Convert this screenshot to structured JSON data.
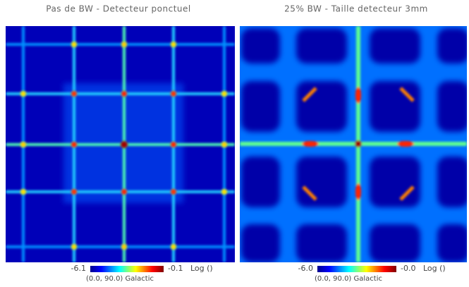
{
  "panels": [
    {
      "title": "Pas de BW - Detecteur ponctuel",
      "colorbar_min": "-6.1",
      "colorbar_max": "-0.1",
      "unit": "Log ()",
      "coords": "(0.0, 90.0) Galactic"
    },
    {
      "title": "25% BW - Taille detecteur 3mm",
      "colorbar_min": "-6.0",
      "colorbar_max": "-0.0",
      "unit": "Log ()",
      "coords": "(0.0, 90.0) Galactic"
    }
  ]
}
